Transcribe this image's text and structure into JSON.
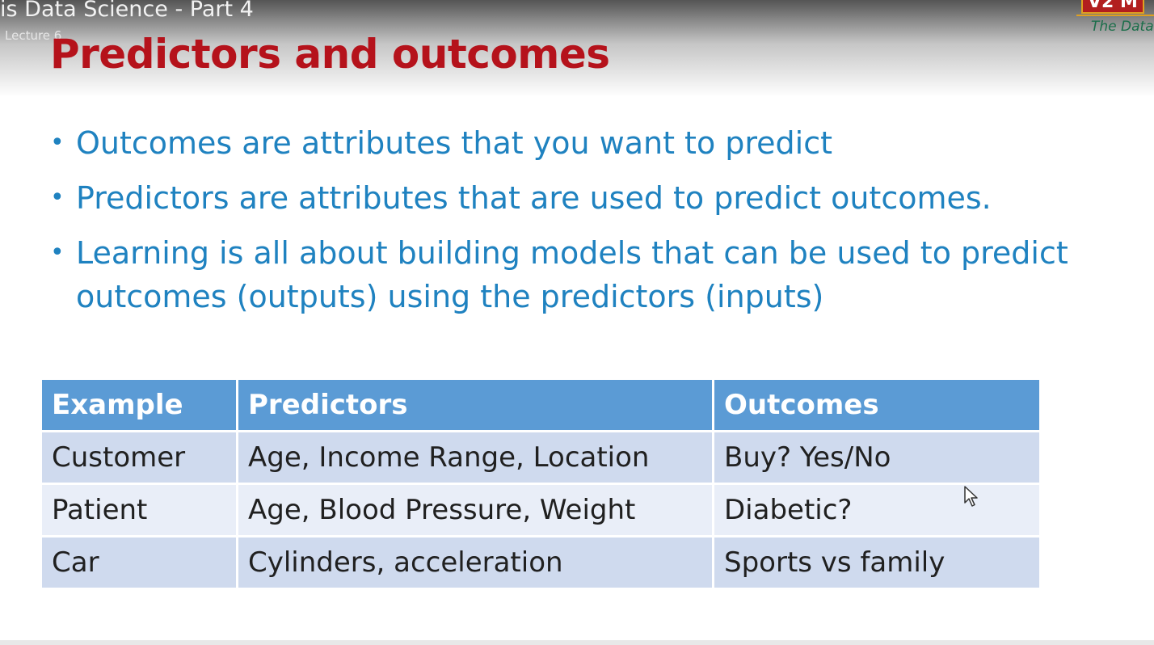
{
  "video": {
    "title": "is Data Science - Part 4",
    "subtitle": "Lecture 6"
  },
  "logo": {
    "top_text": "V2 M",
    "tagline": "The Data"
  },
  "slide": {
    "title": "Predictors and outcomes",
    "bullets": [
      "Outcomes are attributes that you want to predict",
      "Predictors are attributes that are used to predict outcomes.",
      "Learning is all about building models that can be used to predict outcomes (outputs) using the predictors (inputs)"
    ],
    "table": {
      "headers": [
        "Example",
        "Predictors",
        "Outcomes"
      ],
      "rows": [
        [
          "Customer",
          "Age, Income Range, Location",
          "Buy? Yes/No"
        ],
        [
          "Patient",
          "Age, Blood Pressure, Weight",
          "Diabetic?"
        ],
        [
          "Car",
          "Cylinders, acceleration",
          "Sports vs family"
        ]
      ]
    }
  },
  "colors": {
    "title": "#b5121b",
    "bullet_text": "#1f82c0",
    "table_header": "#5b9bd5",
    "table_row": "#cfdaee",
    "table_row_alt": "#e9eef8"
  },
  "icons": {
    "cursor": "mouse-pointer-icon",
    "bullet": "bullet-dot-icon"
  }
}
